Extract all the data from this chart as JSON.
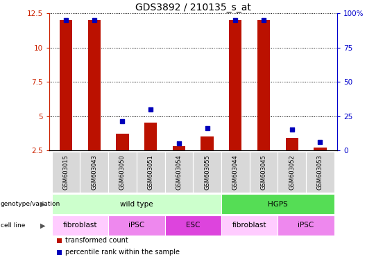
{
  "title": "GDS3892 / 210135_s_at",
  "samples": [
    "GSM603015",
    "GSM603043",
    "GSM603050",
    "GSM603051",
    "GSM603054",
    "GSM603055",
    "GSM603044",
    "GSM603045",
    "GSM603052",
    "GSM603053"
  ],
  "transformed_count": [
    12.0,
    12.0,
    3.7,
    4.5,
    2.8,
    3.5,
    12.0,
    12.0,
    3.4,
    2.7
  ],
  "percentile_rank_left_scale": [
    12.0,
    12.0,
    4.6,
    5.5,
    3.0,
    4.1,
    12.0,
    12.0,
    4.0,
    3.1
  ],
  "ylim_left": [
    2.5,
    12.5
  ],
  "ylim_right": [
    0,
    100
  ],
  "yticks_left": [
    2.5,
    5.0,
    7.5,
    10.0,
    12.5
  ],
  "yticks_right": [
    0,
    25,
    50,
    75,
    100
  ],
  "ytick_labels_left": [
    "2.5",
    "5",
    "7.5",
    "10",
    "12.5"
  ],
  "ytick_labels_right": [
    "0",
    "25",
    "50",
    "75",
    "100%"
  ],
  "bar_color": "#bb1100",
  "dot_color": "#0000bb",
  "left_axis_color": "#cc2200",
  "right_axis_color": "#0000cc",
  "genotype_groups": [
    {
      "label": "wild type",
      "start": 0,
      "end": 6,
      "color": "#ccffcc"
    },
    {
      "label": "HGPS",
      "start": 6,
      "end": 10,
      "color": "#55dd55"
    }
  ],
  "cell_line_groups": [
    {
      "label": "fibroblast",
      "start": 0,
      "end": 2,
      "color": "#ffccff"
    },
    {
      "label": "iPSC",
      "start": 2,
      "end": 4,
      "color": "#ee88ee"
    },
    {
      "label": "ESC",
      "start": 4,
      "end": 6,
      "color": "#dd44dd"
    },
    {
      "label": "fibroblast",
      "start": 6,
      "end": 8,
      "color": "#ffccff"
    },
    {
      "label": "iPSC",
      "start": 8,
      "end": 10,
      "color": "#ee88ee"
    }
  ],
  "legend_items": [
    {
      "label": "transformed count",
      "color": "#bb1100"
    },
    {
      "label": "percentile rank within the sample",
      "color": "#0000bb"
    }
  ],
  "bar_width": 0.45,
  "dot_size": 18,
  "background_color": "#ffffff",
  "title_fontsize": 10,
  "tick_fontsize": 7.5,
  "sample_fontsize": 6,
  "row_fontsize": 7.5,
  "legend_fontsize": 7
}
